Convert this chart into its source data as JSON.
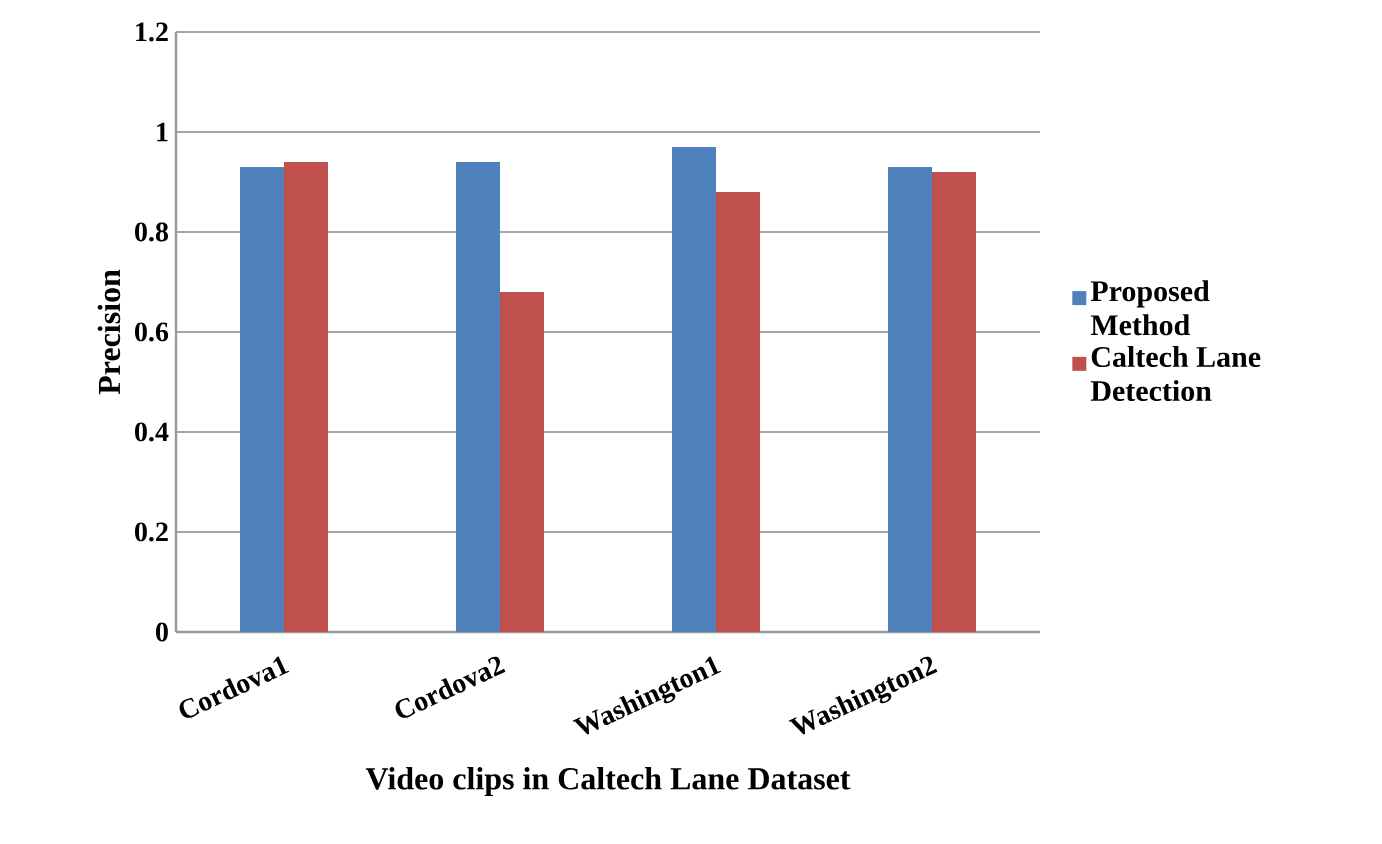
{
  "chart_data": {
    "type": "bar",
    "xlabel": "Video clips in Caltech Lane Dataset",
    "ylabel": "Precision",
    "categories": [
      "Cordova1",
      "Cordova2",
      "Washington1",
      "Washington2"
    ],
    "series": [
      {
        "name": "Proposed Method",
        "color": "#4f81bd",
        "values": [
          0.93,
          0.94,
          0.97,
          0.93
        ]
      },
      {
        "name": "Caltech Lane Detection",
        "color": "#c0504d",
        "values": [
          0.94,
          0.68,
          0.88,
          0.92
        ]
      }
    ],
    "ylim": [
      0,
      1.2
    ],
    "yticks": [
      0,
      0.2,
      0.4,
      0.6,
      0.8,
      1,
      1.2
    ],
    "grid": "y",
    "legend": "right"
  }
}
